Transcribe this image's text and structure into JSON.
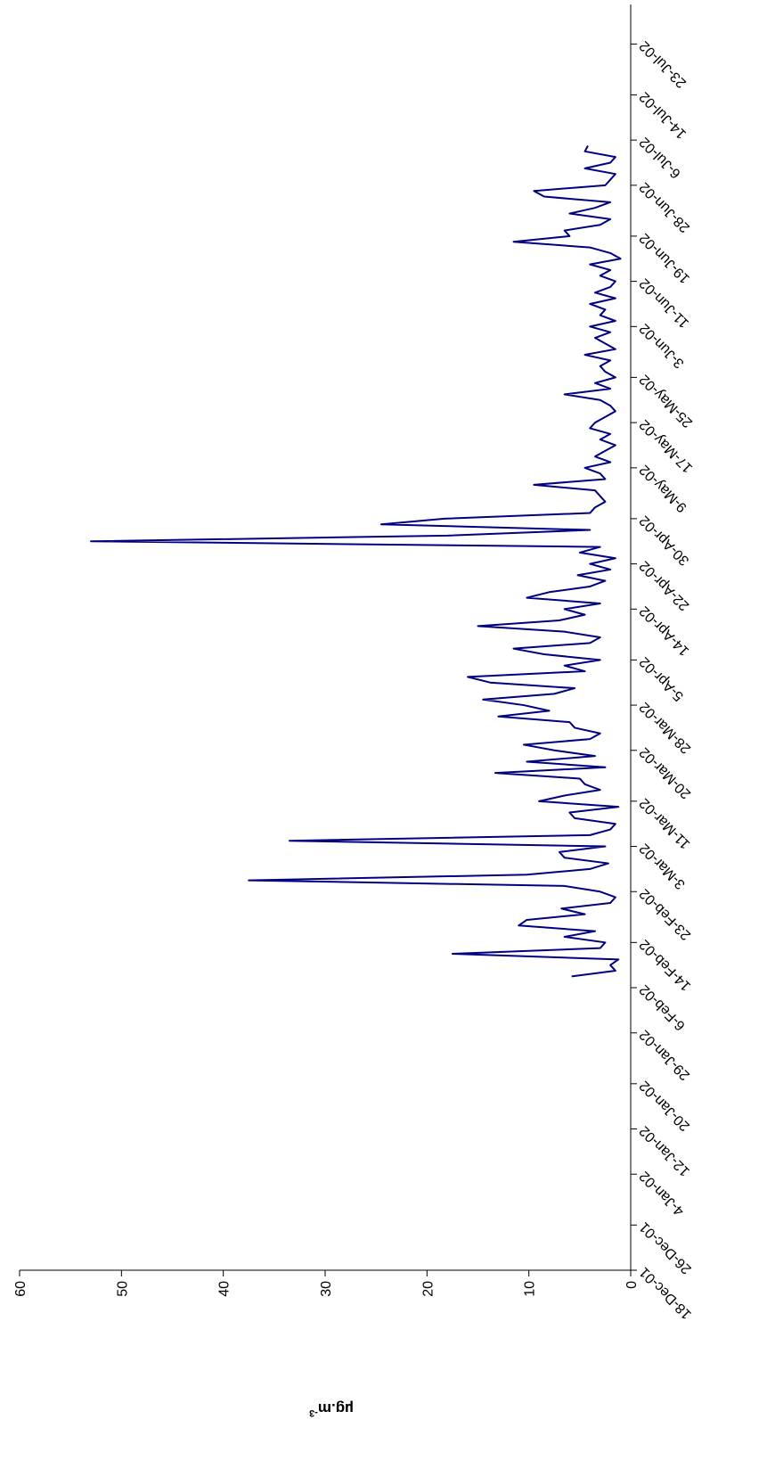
{
  "chart_data": {
    "type": "line",
    "y_label": "µg.m",
    "y_label_superscript": "-3",
    "color": "#000080",
    "xlim": [
      "18-Dec-01",
      "30-Jul-02"
    ],
    "xticks": [
      "18-Dec-01",
      "26-Dec-01",
      "4-Jan-02",
      "12-Jan-02",
      "20-Jan-02",
      "29-Jan-02",
      "6-Feb-02",
      "14-Feb-02",
      "23-Feb-02",
      "3-Mar-02",
      "11-Mar-02",
      "20-Mar-02",
      "28-Mar-02",
      "5-Apr-02",
      "14-Apr-02",
      "22-Apr-02",
      "30-Apr-02",
      "9-May-02",
      "17-May-02",
      "25-May-02",
      "3-Jun-02",
      "11-Jun-02",
      "19-Jun-02",
      "28-Jun-02",
      "6-Jul-02",
      "14-Jul-02",
      "23-Jul-02"
    ],
    "ylim": [
      0,
      60
    ],
    "yticks": [
      0,
      10,
      20,
      30,
      40,
      50,
      60
    ],
    "x": [
      "8-Feb-02",
      "9-Feb-02",
      "10-Feb-02",
      "11-Feb-02",
      "12-Feb-02",
      "13-Feb-02",
      "14-Feb-02",
      "15-Feb-02",
      "16-Feb-02",
      "17-Feb-02",
      "18-Feb-02",
      "19-Feb-02",
      "20-Feb-02",
      "21-Feb-02",
      "22-Feb-02",
      "23-Feb-02",
      "24-Feb-02",
      "25-Feb-02",
      "26-Feb-02",
      "27-Feb-02",
      "28-Feb-02",
      "1-Mar-02",
      "2-Mar-02",
      "3-Mar-02",
      "4-Mar-02",
      "5-Mar-02",
      "6-Mar-02",
      "7-Mar-02",
      "8-Mar-02",
      "9-Mar-02",
      "10-Mar-02",
      "11-Mar-02",
      "12-Mar-02",
      "13-Mar-02",
      "14-Mar-02",
      "15-Mar-02",
      "16-Mar-02",
      "17-Mar-02",
      "18-Mar-02",
      "19-Mar-02",
      "20-Mar-02",
      "21-Mar-02",
      "22-Mar-02",
      "23-Mar-02",
      "24-Mar-02",
      "25-Mar-02",
      "26-Mar-02",
      "27-Mar-02",
      "28-Mar-02",
      "29-Mar-02",
      "30-Mar-02",
      "31-Mar-02",
      "1-Apr-02",
      "2-Apr-02",
      "3-Apr-02",
      "4-Apr-02",
      "5-Apr-02",
      "6-Apr-02",
      "7-Apr-02",
      "8-Apr-02",
      "9-Apr-02",
      "10-Apr-02",
      "11-Apr-02",
      "12-Apr-02",
      "13-Apr-02",
      "14-Apr-02",
      "15-Apr-02",
      "16-Apr-02",
      "17-Apr-02",
      "18-Apr-02",
      "19-Apr-02",
      "20-Apr-02",
      "21-Apr-02",
      "22-Apr-02",
      "23-Apr-02",
      "24-Apr-02",
      "25-Apr-02",
      "26-Apr-02",
      "27-Apr-02",
      "28-Apr-02",
      "29-Apr-02",
      "30-Apr-02",
      "1-May-02",
      "2-May-02",
      "3-May-02",
      "4-May-02",
      "5-May-02",
      "6-May-02",
      "7-May-02",
      "8-May-02",
      "9-May-02",
      "10-May-02",
      "11-May-02",
      "12-May-02",
      "13-May-02",
      "14-May-02",
      "15-May-02",
      "16-May-02",
      "17-May-02",
      "18-May-02",
      "19-May-02",
      "20-May-02",
      "21-May-02",
      "22-May-02",
      "23-May-02",
      "24-May-02",
      "25-May-02",
      "26-May-02",
      "27-May-02",
      "28-May-02",
      "29-May-02",
      "30-May-02",
      "31-May-02",
      "1-Jun-02",
      "2-Jun-02",
      "3-Jun-02",
      "4-Jun-02",
      "5-Jun-02",
      "6-Jun-02",
      "7-Jun-02",
      "8-Jun-02",
      "9-Jun-02",
      "10-Jun-02",
      "11-Jun-02",
      "12-Jun-02",
      "13-Jun-02",
      "14-Jun-02",
      "15-Jun-02",
      "16-Jun-02",
      "17-Jun-02",
      "18-Jun-02",
      "19-Jun-02",
      "20-Jun-02",
      "21-Jun-02",
      "22-Jun-02",
      "23-Jun-02",
      "24-Jun-02",
      "25-Jun-02",
      "26-Jun-02",
      "27-Jun-02",
      "28-Jun-02",
      "29-Jun-02",
      "30-Jun-02",
      "1-Jul-02",
      "2-Jul-02",
      "3-Jul-02",
      "4-Jul-02",
      "5-Jul-02"
    ],
    "values": [
      5.8,
      1.5,
      2.0,
      1.2,
      17.5,
      3.0,
      2.5,
      6.5,
      3.5,
      11.0,
      10.2,
      4.5,
      6.8,
      2.0,
      1.5,
      3.0,
      6.5,
      37.5,
      10.2,
      4.0,
      2.2,
      6.5,
      7.0,
      2.5,
      33.5,
      4.0,
      2.0,
      1.5,
      5.5,
      6.0,
      1.2,
      9.0,
      6.5,
      3.0,
      4.5,
      5.0,
      13.3,
      2.5,
      10.2,
      3.5,
      7.5,
      10.5,
      4.0,
      3.0,
      5.5,
      6.0,
      13.0,
      8.0,
      10.5,
      14.5,
      7.5,
      5.5,
      13.8,
      16.0,
      4.5,
      6.5,
      3.0,
      8.5,
      11.5,
      4.0,
      3.0,
      6.5,
      15.0,
      7.0,
      4.5,
      6.5,
      3.0,
      10.2,
      8.0,
      4.0,
      2.5,
      5.2,
      2.0,
      4.0,
      1.5,
      5.0,
      3.0,
      53.0,
      18.0,
      4.0,
      24.5,
      18.3,
      4.0,
      3.5,
      2.5,
      3.0,
      3.5,
      9.5,
      2.5,
      3.0,
      4.5,
      2.0,
      3.5,
      2.5,
      1.5,
      3.0,
      2.0,
      4.0,
      3.5,
      2.5,
      1.5,
      2.0,
      3.0,
      6.5,
      2.0,
      3.5,
      1.5,
      2.5,
      3.0,
      2.0,
      4.5,
      1.5,
      2.5,
      3.5,
      2.0,
      4.0,
      1.5,
      3.0,
      2.5,
      4.0,
      1.5,
      3.5,
      2.0,
      1.5,
      3.0,
      2.0,
      4.0,
      1.0,
      2.0,
      4.0,
      11.5,
      6.0,
      6.5,
      3.0,
      2.0,
      6.0,
      3.5,
      2.0,
      8.5,
      9.5,
      2.5,
      2.0,
      1.5,
      4.5,
      2.0,
      1.5,
      4.5,
      4.2
    ]
  }
}
